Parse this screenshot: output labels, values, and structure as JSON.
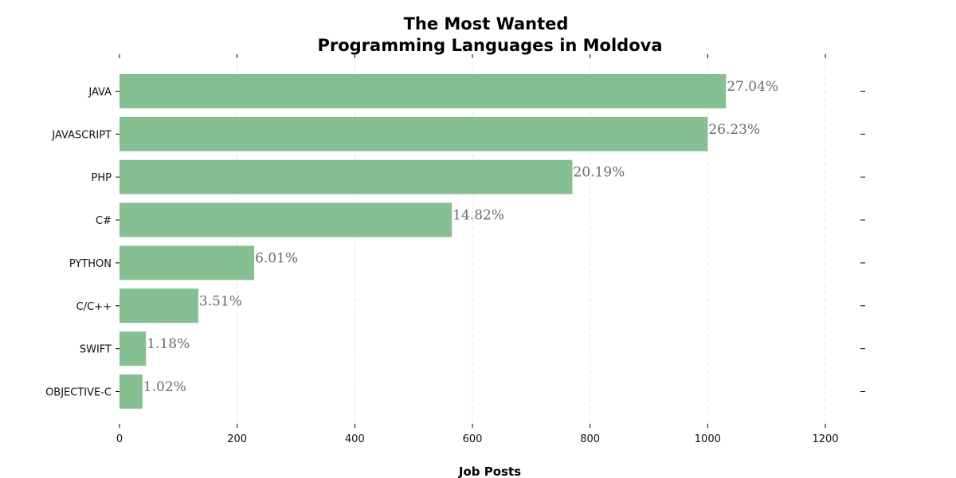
{
  "chart_data": {
    "type": "bar",
    "orientation": "horizontal",
    "title": "The Most Wanted\nProgramming Languages in Moldova",
    "xlabel": "Job Posts",
    "ylabel": "",
    "categories": [
      "JAVA",
      "JAVASCRIPT",
      "PHP",
      "C#",
      "PYTHON",
      "C/C++",
      "SWIFT",
      "OBJECTIVE-C"
    ],
    "values": [
      1031,
      1000,
      770,
      565,
      229,
      134,
      45,
      39
    ],
    "data_labels": [
      "27.04%",
      "26.23%",
      "20.19%",
      "14.82%",
      "6.01%",
      "3.51%",
      "1.18%",
      "1.02%"
    ],
    "xlim": [
      0,
      1260
    ],
    "xticks": [
      0,
      200,
      400,
      600,
      800,
      1000,
      1200
    ],
    "grid": "vertical dashed",
    "legend": "none",
    "bar_color": "#86bf91"
  }
}
